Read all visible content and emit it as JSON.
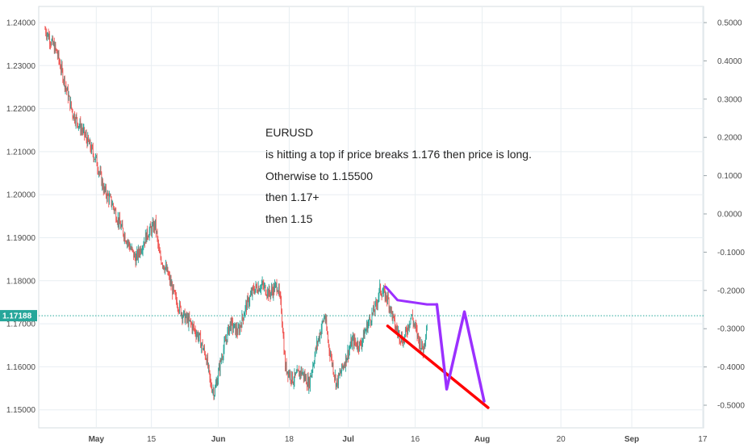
{
  "chart_data": {
    "type": "candlestick",
    "symbol": "EURUSD",
    "left_axis": {
      "ticks": [
        "1.24000",
        "1.23000",
        "1.22000",
        "1.21000",
        "1.20000",
        "1.19000",
        "1.18000",
        "1.17000",
        "1.16000",
        "1.15000"
      ],
      "values": [
        1.24,
        1.23,
        1.22,
        1.21,
        1.2,
        1.19,
        1.18,
        1.17,
        1.16,
        1.15
      ],
      "range": [
        1.147,
        1.243
      ]
    },
    "right_axis": {
      "ticks": [
        "0.5000",
        "0.4000",
        "0.3000",
        "0.2000",
        "0.1000",
        "0.0000",
        "-0.1000",
        "-0.2000",
        "-0.3000",
        "-0.4000",
        "-0.5000"
      ],
      "values": [
        0.5,
        0.4,
        0.3,
        0.2,
        0.1,
        0.0,
        -0.1,
        -0.2,
        -0.3,
        -0.4,
        -0.5
      ]
    },
    "x_axis": {
      "ticks": [
        "May",
        "15",
        "Jun",
        "18",
        "Jul",
        "16",
        "Aug",
        "20",
        "Sep",
        "17"
      ],
      "bold": [
        true,
        false,
        true,
        false,
        true,
        false,
        true,
        false,
        true,
        false
      ],
      "day_index": [
        14,
        28,
        45,
        63,
        78,
        95,
        112,
        132,
        150,
        168
      ]
    },
    "grid": true,
    "current_price": {
      "label": "1.17188",
      "value": 1.17188,
      "color": "#26a69a"
    },
    "colors": {
      "up": "#26a69a",
      "down": "#ef5350",
      "grid": "#e8eef2",
      "purple": "#9b30ff",
      "red": "#ff0000"
    },
    "close_path": [
      [
        1,
        1.2385
      ],
      [
        4,
        1.233
      ],
      [
        6,
        1.226
      ],
      [
        8,
        1.219
      ],
      [
        11,
        1.214
      ],
      [
        14,
        1.208
      ],
      [
        16,
        1.201
      ],
      [
        18,
        1.198
      ],
      [
        20,
        1.193
      ],
      [
        22,
        1.189
      ],
      [
        24,
        1.185
      ],
      [
        27,
        1.191
      ],
      [
        29,
        1.193
      ],
      [
        30,
        1.186
      ],
      [
        32,
        1.182
      ],
      [
        34,
        1.176
      ],
      [
        36,
        1.172
      ],
      [
        38,
        1.17
      ],
      [
        40,
        1.167
      ],
      [
        42,
        1.162
      ],
      [
        43,
        1.156
      ],
      [
        44,
        1.154
      ],
      [
        46,
        1.163
      ],
      [
        48,
        1.17
      ],
      [
        50,
        1.168
      ],
      [
        52,
        1.174
      ],
      [
        54,
        1.178
      ],
      [
        56,
        1.179
      ],
      [
        58,
        1.177
      ],
      [
        60,
        1.179
      ],
      [
        61,
        1.1735
      ],
      [
        62,
        1.16
      ],
      [
        64,
        1.157
      ],
      [
        66,
        1.159
      ],
      [
        68,
        1.156
      ],
      [
        70,
        1.165
      ],
      [
        72,
        1.172
      ],
      [
        73,
        1.165
      ],
      [
        75,
        1.156
      ],
      [
        77,
        1.161
      ],
      [
        79,
        1.166
      ],
      [
        81,
        1.165
      ],
      [
        83,
        1.17
      ],
      [
        85,
        1.174
      ],
      [
        86,
        1.178
      ],
      [
        88,
        1.176
      ],
      [
        90,
        1.169
      ],
      [
        92,
        1.166
      ],
      [
        94,
        1.172
      ],
      [
        96,
        1.166
      ],
      [
        97,
        1.164
      ],
      [
        98,
        1.17
      ]
    ],
    "annotations": {
      "lines": [
        "EURUSD",
        "is hitting a top if price breaks 1.176 then price is long.",
        "Otherwise to 1.15500",
        "then 1.17+",
        "then 1.15"
      ]
    },
    "drawings": {
      "red_trendline": [
        [
          88,
          1.1695
        ],
        [
          113.5,
          1.1505
        ]
      ],
      "purple_top_line": [
        [
          87.5,
          1.1786
        ],
        [
          90.5,
          1.1755
        ],
        [
          98,
          1.1745
        ],
        [
          100.5,
          1.1745
        ]
      ],
      "purple_projection": [
        [
          100.5,
          1.1745
        ],
        [
          103,
          1.1548
        ],
        [
          107.5,
          1.1728
        ],
        [
          112.5,
          1.152
        ]
      ]
    }
  }
}
